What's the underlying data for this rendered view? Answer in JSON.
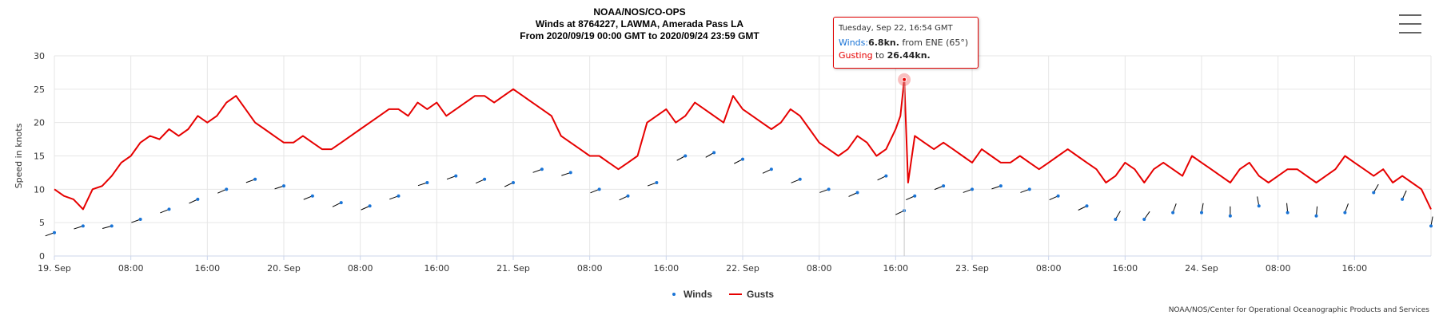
{
  "header": {
    "line1": "NOAA/NOS/CO-OPS",
    "line2": "Winds at 8764227, LAWMA, Amerada Pass LA",
    "line3": "From 2020/09/19 00:00 GMT to 2020/09/24 23:59 GMT"
  },
  "menu_icon": "hamburger-menu-icon",
  "credit": "NOAA/NOS/Center for Operational Oceanographic Products and Services",
  "tooltip": {
    "date": "Tuesday, Sep 22, 16:54 GMT",
    "wind_label": "Winds:",
    "wind_value": "6.8kn.",
    "wind_dir_text": " from ENE (65°)",
    "gust_label": "Gusting",
    "gust_mid": " to ",
    "gust_value": "26.44kn."
  },
  "colors": {
    "gusts": "#e60000",
    "winds": "#1a74d6",
    "arrows": "#000000",
    "grid": "#e6e6e6"
  },
  "chart_data": {
    "type": "line",
    "ylabel": "Speed in knots",
    "ylim": [
      0,
      30
    ],
    "yticks": [
      "0",
      "5",
      "10",
      "15",
      "20",
      "25",
      "30"
    ],
    "xlim_hours": [
      0,
      144
    ],
    "xticks": [
      {
        "h": 0,
        "label": "19. Sep"
      },
      {
        "h": 8,
        "label": "08:00"
      },
      {
        "h": 16,
        "label": "16:00"
      },
      {
        "h": 24,
        "label": "20. Sep"
      },
      {
        "h": 32,
        "label": "08:00"
      },
      {
        "h": 40,
        "label": "16:00"
      },
      {
        "h": 48,
        "label": "21. Sep"
      },
      {
        "h": 56,
        "label": "08:00"
      },
      {
        "h": 64,
        "label": "16:00"
      },
      {
        "h": 72,
        "label": "22. Sep"
      },
      {
        "h": 80,
        "label": "08:00"
      },
      {
        "h": 88,
        "label": "16:00"
      },
      {
        "h": 96,
        "label": "23. Sep"
      },
      {
        "h": 104,
        "label": "08:00"
      },
      {
        "h": 112,
        "label": "16:00"
      },
      {
        "h": 120,
        "label": "24. Sep"
      },
      {
        "h": 128,
        "label": "08:00"
      },
      {
        "h": 136,
        "label": "16:00"
      }
    ],
    "grid": true,
    "legend": "bottom-center",
    "highlight_hour": 88.9,
    "highlight_gust": 26.44,
    "series": [
      {
        "name": "Winds",
        "x_hours": [
          0,
          3,
          6,
          9,
          12,
          15,
          18,
          21,
          24,
          27,
          30,
          33,
          36,
          39,
          42,
          45,
          48,
          51,
          54,
          57,
          60,
          63,
          66,
          69,
          72,
          75,
          78,
          81,
          84,
          87,
          88.9,
          90,
          93,
          96,
          99,
          102,
          105,
          108,
          111,
          114,
          117,
          120,
          123,
          126,
          129,
          132,
          135,
          138,
          141,
          144
        ],
        "values": [
          3.5,
          4.5,
          4.5,
          5.5,
          7,
          8.5,
          10,
          11.5,
          10.5,
          9,
          8,
          7.5,
          9,
          11,
          12,
          11.5,
          11,
          13,
          12.5,
          10,
          9,
          11,
          15,
          15.5,
          14.5,
          13,
          11.5,
          10,
          9.5,
          12,
          6.8,
          9,
          10.5,
          10,
          10.5,
          10,
          9,
          7.5,
          5.5,
          5.5,
          6.5,
          6.5,
          6,
          7.5,
          6.5,
          6,
          6.5,
          9.5,
          8.5,
          4.5
        ],
        "dir_deg": [
          70,
          72,
          75,
          70,
          68,
          65,
          66,
          70,
          72,
          68,
          64,
          66,
          70,
          72,
          70,
          66,
          65,
          70,
          72,
          68,
          65,
          70,
          62,
          60,
          63,
          65,
          68,
          70,
          66,
          64,
          65,
          66,
          68,
          70,
          72,
          70,
          66,
          64,
          210,
          215,
          200,
          190,
          180,
          170,
          175,
          185,
          200,
          210,
          205,
          190
        ]
      },
      {
        "name": "Gusts",
        "x_hours": [
          0,
          1,
          2,
          3,
          4,
          5,
          6,
          7,
          8,
          9,
          10,
          11,
          12,
          13,
          14,
          15,
          16,
          17,
          18,
          19,
          20,
          21,
          22,
          23,
          24,
          25,
          26,
          27,
          28,
          29,
          30,
          31,
          32,
          33,
          34,
          35,
          36,
          37,
          38,
          39,
          40,
          41,
          42,
          43,
          44,
          45,
          46,
          47,
          48,
          49,
          50,
          51,
          52,
          53,
          54,
          55,
          56,
          57,
          58,
          59,
          60,
          61,
          62,
          63,
          64,
          65,
          66,
          67,
          68,
          69,
          70,
          71,
          72,
          73,
          74,
          75,
          76,
          77,
          78,
          79,
          80,
          81,
          82,
          83,
          84,
          85,
          86,
          87,
          88,
          88.5,
          88.9,
          89.3,
          90,
          91,
          92,
          93,
          94,
          95,
          96,
          97,
          98,
          99,
          100,
          101,
          102,
          103,
          104,
          105,
          106,
          107,
          108,
          109,
          110,
          111,
          112,
          113,
          114,
          115,
          116,
          117,
          118,
          119,
          120,
          121,
          122,
          123,
          124,
          125,
          126,
          127,
          128,
          129,
          130,
          131,
          132,
          133,
          134,
          135,
          136,
          137,
          138,
          139,
          140,
          141,
          142,
          143,
          144
        ],
        "values": [
          10,
          9,
          8.5,
          7,
          10,
          10.5,
          12,
          14,
          15,
          17,
          18,
          17.5,
          19,
          18,
          19,
          21,
          20,
          21,
          23,
          24,
          22,
          20,
          19,
          18,
          17,
          17,
          18,
          17,
          16,
          16,
          17,
          18,
          19,
          20,
          21,
          22,
          22,
          21,
          23,
          22,
          23,
          21,
          22,
          23,
          24,
          24,
          23,
          24,
          25,
          24,
          23,
          22,
          21,
          18,
          17,
          16,
          15,
          15,
          14,
          13,
          14,
          15,
          20,
          21,
          22,
          20,
          21,
          23,
          22,
          21,
          20,
          24,
          22,
          21,
          20,
          19,
          20,
          22,
          21,
          19,
          17,
          16,
          15,
          16,
          18,
          17,
          15,
          16,
          19,
          21,
          26.44,
          11,
          18,
          17,
          16,
          17,
          16,
          15,
          14,
          16,
          15,
          14,
          14,
          15,
          14,
          13,
          14,
          15,
          16,
          15,
          14,
          13,
          11,
          12,
          14,
          13,
          11,
          13,
          14,
          13,
          12,
          15,
          14,
          13,
          12,
          11,
          13,
          14,
          12,
          11,
          12,
          13,
          13,
          12,
          11,
          12,
          13,
          15,
          14,
          13,
          12,
          13,
          11,
          12,
          11,
          10,
          7
        ]
      }
    ]
  },
  "legend": {
    "winds": "Winds",
    "gusts": "Gusts"
  }
}
